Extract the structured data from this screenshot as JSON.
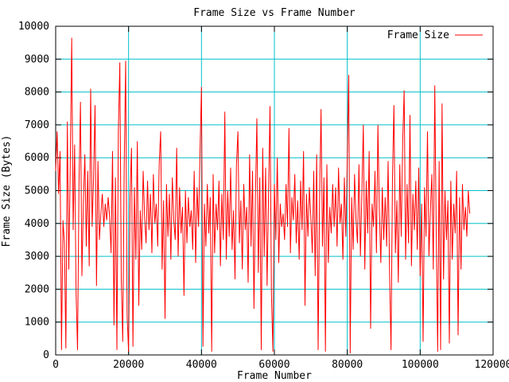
{
  "chart_data": {
    "type": "line",
    "title": "Frame Size vs Frame Number",
    "xlabel": "Frame Number",
    "ylabel": "Frame Size (Bytes)",
    "xlim": [
      0,
      120000
    ],
    "ylim": [
      0,
      10000
    ],
    "x_ticks": [
      0,
      20000,
      40000,
      60000,
      80000,
      100000,
      120000
    ],
    "x_tick_labels": [
      "0",
      "20000",
      "40000",
      "60000",
      "80000",
      "100000",
      "120000"
    ],
    "y_ticks": [
      0,
      1000,
      2000,
      3000,
      4000,
      5000,
      6000,
      7000,
      8000,
      9000,
      10000
    ],
    "y_tick_labels": [
      "0",
      "1000",
      "2000",
      "3000",
      "4000",
      "5000",
      "6000",
      "7000",
      "8000",
      "9000",
      "10000"
    ],
    "grid": true,
    "legend": {
      "position": "top-right",
      "entries": [
        {
          "label": "Frame Size",
          "color": "#ff0000"
        }
      ]
    },
    "colors": {
      "background": "#ffffff",
      "grid": "#00c0c8",
      "axis": "#000000",
      "text": "#000000",
      "series": "#ff0000"
    },
    "series": [
      {
        "name": "Frame Size",
        "color": "#ff0000",
        "start_frame": 0,
        "frame_step": 400,
        "values": [
          5600,
          6800,
          4900,
          6200,
          150,
          4100,
          3400,
          200,
          7100,
          2600,
          5800,
          9650,
          3800,
          6400,
          1900,
          150,
          5200,
          7700,
          2400,
          4600,
          6100,
          3300,
          5600,
          2700,
          8100,
          3900,
          5400,
          7600,
          2100,
          5900,
          3500,
          4300,
          4900,
          3900,
          4600,
          4100,
          4800,
          4200,
          3100,
          6200,
          900,
          5400,
          150,
          6800,
          8900,
          2300,
          400,
          5700,
          8950,
          1200,
          100,
          4800,
          6300,
          250,
          5100,
          2900,
          6500,
          1500,
          4400,
          3200,
          5600,
          4200,
          3400,
          5300,
          3800,
          4900,
          3100,
          5500,
          4000,
          4600,
          3300,
          5800,
          6800,
          2600,
          4700,
          1100,
          5200,
          3600,
          4900,
          2900,
          5400,
          4100,
          3500,
          6300,
          3000,
          5100,
          3700,
          4500,
          1800,
          5000,
          3400,
          4800,
          3900,
          4400,
          3200,
          5600,
          2800,
          5100,
          3900,
          6200,
          8150,
          250,
          4600,
          3300,
          5200,
          3700,
          4800,
          100,
          5500,
          3100,
          4600,
          3800,
          5300,
          2700,
          4900,
          3500,
          7400,
          2900,
          5000,
          3600,
          5700,
          3200,
          4400,
          2300,
          5800,
          6800,
          3400,
          4700,
          2600,
          5200,
          3800,
          4500,
          2200,
          6100,
          3300,
          5600,
          1400,
          4800,
          7200,
          2500,
          5400,
          150,
          6300,
          3000,
          5700,
          2100,
          4900,
          7570,
          1800,
          100,
          5200,
          3500,
          6000,
          2800,
          4600,
          3900,
          4300,
          3500,
          5200,
          3900,
          6900,
          3100,
          4800,
          4100,
          5500,
          3400,
          4700,
          2900,
          5300,
          3800,
          6200,
          1500,
          4900,
          3600,
          5100,
          4200,
          3100,
          5600,
          2400,
          6100,
          150,
          4700,
          7480,
          3300,
          5400,
          100,
          5800,
          2800,
          4500,
          3700,
          5200,
          3900,
          5100,
          3300,
          5700,
          4000,
          4600,
          2900,
          5400,
          3600,
          6000,
          8520,
          50,
          4800,
          3200,
          5500,
          4100,
          3400,
          5800,
          3000,
          4900,
          7000,
          2600,
          5300,
          3700,
          6200,
          800,
          4600,
          3900,
          5600,
          3100,
          7000,
          4400,
          2800,
          5100,
          3500,
          4800,
          3300,
          5900,
          2500,
          150,
          5400,
          7600,
          3100,
          4700,
          2200,
          5800,
          3600,
          6500,
          8050,
          2900,
          5200,
          3400,
          7300,
          2700,
          4900,
          3800,
          5300,
          3200,
          5700,
          2400,
          4600,
          400,
          5100,
          3600,
          6800,
          3000,
          4400,
          5500,
          2600,
          8200,
          3700,
          100,
          5900,
          150,
          7650,
          2300,
          5000,
          3500,
          4700,
          350,
          5300,
          2900,
          4600,
          3700,
          5600,
          600,
          4800,
          2600,
          5200,
          3800,
          4500,
          3600,
          5000,
          4300
        ]
      }
    ]
  }
}
